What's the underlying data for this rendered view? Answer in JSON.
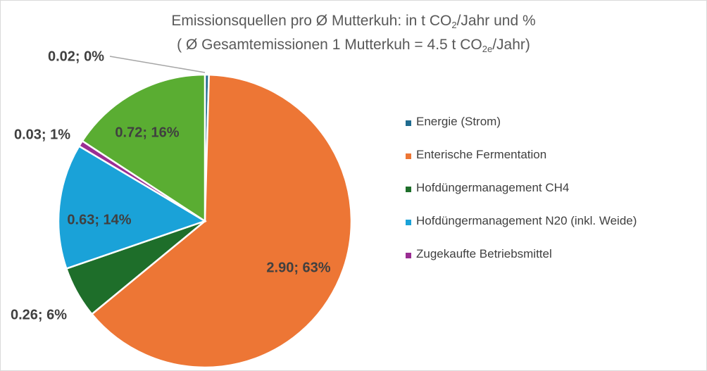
{
  "chart_data": {
    "type": "pie",
    "title": {
      "line1_text": "Emissionsquellen pro  Ø  Mutterkuh: in t CO",
      "line1_sub": "2",
      "line1_tail": "/Jahr und %",
      "line2_text": "( Ø Gesamtemissionen 1 Mutterkuh = 4.5 t CO",
      "line2_sub": "2e",
      "line2_tail": "/Jahr)"
    },
    "slices": [
      {
        "name": "Energie (Strom)",
        "value": 0.02,
        "percent": 0,
        "label": "0.02; 0%",
        "color": "#1f6b8f"
      },
      {
        "name": "Enterische Fermentation",
        "value": 2.9,
        "percent": 63,
        "label": "2.90; 63%",
        "color": "#ed7635"
      },
      {
        "name": "Hofdüngermanagement CH4",
        "value": 0.26,
        "percent": 6,
        "label": "0.26; 6%",
        "color": "#1e6e2a"
      },
      {
        "name": "Hofdüngermanagement N20 (inkl. Weide)",
        "value": 0.63,
        "percent": 14,
        "label": "0.63; 14%",
        "color": "#1aa2d8"
      },
      {
        "name": "Zugekaufte Betriebsmittel",
        "value": 0.03,
        "percent": 1,
        "label": "0.03; 1%",
        "color": "#9a2d93"
      },
      {
        "name": "",
        "value": 0.72,
        "percent": 16,
        "label": "0.72; 16%",
        "color": "#5aad32"
      }
    ],
    "legend_position": "right"
  }
}
